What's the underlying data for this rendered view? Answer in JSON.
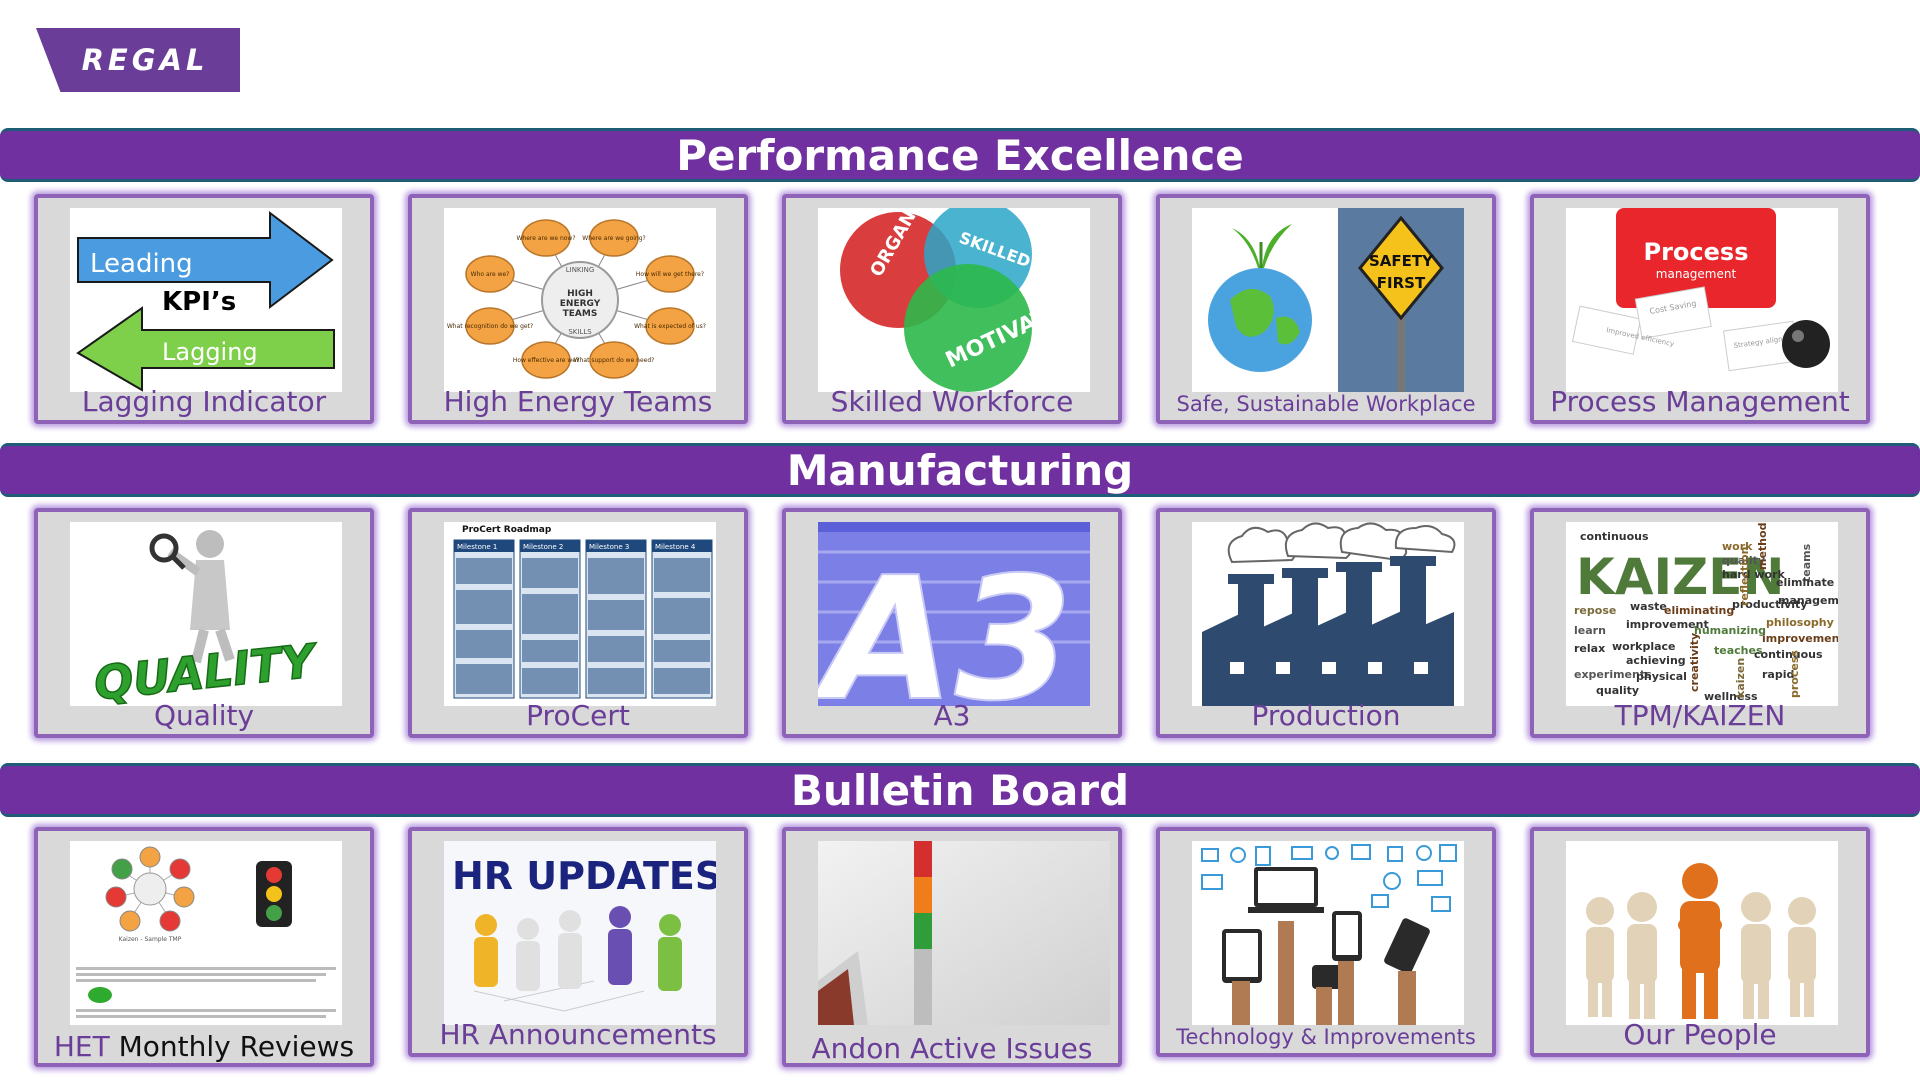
{
  "logo": {
    "text": "REGAL"
  },
  "sections": [
    {
      "title": "Performance Excellence",
      "tiles": [
        {
          "caption": "Lagging Indicator",
          "image": {
            "top": "Leading",
            "middle": "KPI’s",
            "bottom": "Lagging"
          }
        },
        {
          "caption": "High Energy Teams",
          "image": {
            "center": "HIGH ENERGY TEAMS",
            "ring_top": "LINKING",
            "ring_bottom": "SKILLS",
            "bubbles": [
              "Where are we now?",
              "Where are we going?",
              "How will we get there?",
              "What is expected of us?",
              "What support do we need?",
              "How effective are we?",
              "What recognition do we get?",
              "Who are we?"
            ]
          }
        },
        {
          "caption": "Skilled Workforce",
          "image": {
            "circles": [
              "ORGANIZED",
              "SKILLED",
              "MOTIVATED"
            ]
          }
        },
        {
          "caption": "Safe, Sustainable Workplace",
          "image": {
            "sign": [
              "SAFETY",
              "FIRST"
            ]
          }
        },
        {
          "caption": "Process Management",
          "image": {
            "title": "Process",
            "subtitle": "management",
            "notes": [
              "Improved efficiency",
              "Cost Saving",
              "Strategy alignment"
            ]
          }
        }
      ]
    },
    {
      "title": "Manufacturing",
      "tiles": [
        {
          "caption": "Quality",
          "image": {
            "word": "QUALITY"
          }
        },
        {
          "caption": "ProCert",
          "image": {
            "title": "ProCert Roadmap",
            "columns": [
              "Milestone 1",
              "Milestone 2",
              "Milestone 3",
              "Milestone 4"
            ]
          }
        },
        {
          "caption": "A3",
          "image": {
            "text": "A3"
          }
        },
        {
          "caption": "Production",
          "image": {}
        },
        {
          "caption": "TPM/KAIZEN",
          "image": {
            "main": "KAIZEN",
            "words": [
              "continuous",
              "work",
              "quality",
              "hard work",
              "method",
              "teams",
              "eliminate",
              "repose",
              "waste",
              "eliminating",
              "productivity",
              "management",
              "learn",
              "improvement",
              "humanizing",
              "philosophy",
              "relax",
              "workplace",
              "teaches",
              "improvement",
              "achieving",
              "continuous",
              "experiments",
              "physical",
              "creativity",
              "rapid",
              "quality",
              "wellness",
              "kaizen",
              "process",
              "reflection"
            ]
          }
        }
      ]
    },
    {
      "title": "Bulletin Board",
      "tiles": [
        {
          "caption_part1": "HET",
          "caption_part2": " Monthly Reviews",
          "image": {
            "label": "Kaizen - Sample TMP"
          }
        },
        {
          "caption": "HR Announcements",
          "image": {
            "title": "HR UPDATES"
          }
        },
        {
          "caption": "Andon Active Issues",
          "image": {}
        },
        {
          "caption": "Technology & Improvements",
          "image": {}
        },
        {
          "caption": "Our People",
          "image": {}
        }
      ]
    }
  ]
}
